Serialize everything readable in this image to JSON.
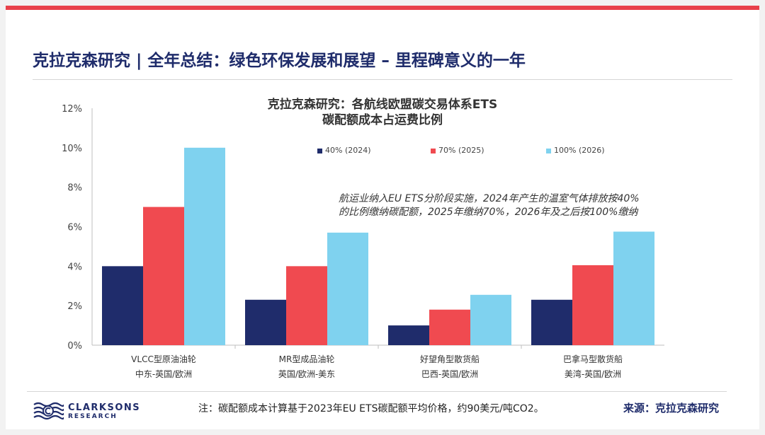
{
  "page_title": "克拉克森研究 | 全年总结：绿色环保发展和展望 – 里程碑意义的一年",
  "annotation": [
    "航运业纳入EU ETS分阶段实施，2024年产生的温室气体排放按40%",
    "的比例缴纳碳配额，2025年缴纳70%，2026年及之后按100%缴纳"
  ],
  "note": "注：碳配额成本计算基于2023年EU ETS碳配额平均价格，约90美元/吨CO2。",
  "source": "来源：克拉克森研究",
  "logo": {
    "line1": "CLARKSONS",
    "line2": "RESEARCH",
    "icon": "wave-logo-icon"
  },
  "colors": {
    "accent_bar": "#e8414b",
    "title": "#1f2c6b",
    "series": [
      "#1f2c6b",
      "#f04a50",
      "#7fd2ef"
    ]
  },
  "chart_data": {
    "type": "bar",
    "title": [
      "克拉克森研究：各航线欧盟碳交易体系ETS",
      "碳配额成本占运费比例"
    ],
    "categories": [
      [
        "VLCC型原油油轮",
        "中东-英国/欧洲"
      ],
      [
        "MR型成品油轮",
        "英国/欧洲-美东"
      ],
      [
        "好望角型散货船",
        "巴西-英国/欧洲"
      ],
      [
        "巴拿马型散货船",
        "美湾-英国/欧洲"
      ]
    ],
    "series": [
      {
        "name": "40% (2024)",
        "values": [
          4.0,
          2.3,
          1.0,
          2.3
        ]
      },
      {
        "name": "70% (2025)",
        "values": [
          7.0,
          4.0,
          1.8,
          4.05
        ]
      },
      {
        "name": "100% (2026)",
        "values": [
          10.0,
          5.7,
          2.55,
          5.75
        ]
      }
    ],
    "yticks": [
      "0%",
      "2%",
      "4%",
      "6%",
      "8%",
      "10%",
      "12%"
    ],
    "ylim": [
      0,
      12
    ],
    "legend_position": "top",
    "grid": false
  }
}
